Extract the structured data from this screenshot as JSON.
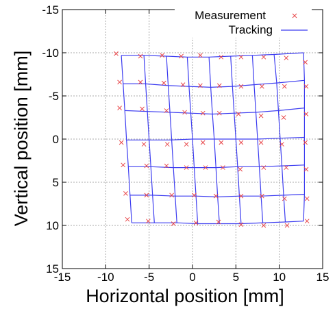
{
  "chart_data": {
    "type": "scatter",
    "xlabel": "Horizontal position [mm]",
    "ylabel": "Vertical position [mm]",
    "xlim": [
      -15,
      15
    ],
    "ylim": [
      -15,
      15
    ],
    "y_inverted": true,
    "grid": true,
    "legend_position": "top-right",
    "x_ticks": [
      "-15",
      "-10",
      "-5",
      "0",
      "5",
      "10",
      "15"
    ],
    "y_ticks": [
      "-15",
      "-10",
      "-5",
      "0",
      "5",
      "10",
      "15"
    ],
    "series": [
      {
        "name": "Measurement",
        "marker": "x",
        "color": "#e8474a",
        "points": [
          [
            -8.8,
            -9.9
          ],
          [
            -6.0,
            -9.6
          ],
          [
            -3.5,
            -9.7
          ],
          [
            -1.3,
            -9.6
          ],
          [
            0.9,
            -9.7
          ],
          [
            3.3,
            -9.5
          ],
          [
            5.6,
            -9.5
          ],
          [
            8.2,
            -9.5
          ],
          [
            10.8,
            -9.4
          ],
          [
            13.0,
            -8.9
          ],
          [
            -8.4,
            -6.6
          ],
          [
            -6.0,
            -6.6
          ],
          [
            -3.3,
            -6.5
          ],
          [
            -1.1,
            -6.3
          ],
          [
            0.9,
            -6.2
          ],
          [
            3.1,
            -6.2
          ],
          [
            5.6,
            -6.1
          ],
          [
            8.0,
            -6.1
          ],
          [
            10.6,
            -6.1
          ],
          [
            13.1,
            -6.1
          ],
          [
            -8.4,
            -3.6
          ],
          [
            -5.8,
            -3.5
          ],
          [
            -3.0,
            -3.3
          ],
          [
            -0.9,
            -3.1
          ],
          [
            1.2,
            -3.0
          ],
          [
            3.1,
            -3.0
          ],
          [
            5.3,
            -2.9
          ],
          [
            7.9,
            -2.7
          ],
          [
            10.5,
            -2.5
          ],
          [
            13.1,
            -2.9
          ],
          [
            -8.2,
            0.4
          ],
          [
            -5.6,
            0.6
          ],
          [
            -2.9,
            0.6
          ],
          [
            -0.7,
            0.6
          ],
          [
            1.2,
            0.4
          ],
          [
            3.3,
            0.4
          ],
          [
            5.6,
            0.4
          ],
          [
            7.9,
            0.4
          ],
          [
            10.3,
            0.6
          ],
          [
            13.0,
            0.4
          ],
          [
            -8.0,
            3.0
          ],
          [
            -5.3,
            3.1
          ],
          [
            -3.0,
            3.1
          ],
          [
            -0.7,
            3.3
          ],
          [
            1.5,
            3.3
          ],
          [
            3.5,
            3.3
          ],
          [
            5.5,
            3.5
          ],
          [
            8.2,
            3.3
          ],
          [
            10.8,
            3.3
          ],
          [
            13.1,
            3.5
          ],
          [
            -7.7,
            6.3
          ],
          [
            -5.3,
            6.5
          ],
          [
            -2.4,
            6.5
          ],
          [
            0.2,
            6.5
          ],
          [
            2.7,
            6.6
          ],
          [
            5.6,
            6.6
          ],
          [
            8.0,
            6.6
          ],
          [
            10.6,
            6.9
          ],
          [
            13.2,
            6.9
          ],
          [
            -7.5,
            9.3
          ],
          [
            -5.1,
            9.5
          ],
          [
            -2.2,
            9.8
          ],
          [
            0.4,
            9.7
          ],
          [
            3.0,
            9.6
          ],
          [
            5.6,
            9.9
          ],
          [
            8.2,
            10.0
          ],
          [
            10.9,
            10.0
          ],
          [
            13.2,
            9.5
          ]
        ]
      },
      {
        "name": "Tracking",
        "marker": "line",
        "color": "#3c3cf0",
        "rows": [
          [
            [
              -8.2,
              -9.7
            ],
            [
              -5.6,
              -9.7
            ],
            [
              -3.0,
              -9.6
            ],
            [
              -0.6,
              -9.5
            ],
            [
              1.9,
              -9.5
            ],
            [
              4.4,
              -9.6
            ],
            [
              6.9,
              -9.7
            ],
            [
              9.4,
              -9.8
            ],
            [
              12.8,
              -10.0
            ]
          ],
          [
            [
              -8.0,
              -6.4
            ],
            [
              -5.4,
              -6.4
            ],
            [
              -2.8,
              -6.2
            ],
            [
              -0.4,
              -6.1
            ],
            [
              2.1,
              -6.0
            ],
            [
              4.6,
              -6.1
            ],
            [
              7.1,
              -6.3
            ],
            [
              9.7,
              -6.5
            ],
            [
              12.9,
              -6.8
            ]
          ],
          [
            [
              -7.8,
              -3.3
            ],
            [
              -5.2,
              -3.2
            ],
            [
              -2.6,
              -3.1
            ],
            [
              -0.2,
              -3.0
            ],
            [
              2.3,
              -2.9
            ],
            [
              4.8,
              -3.0
            ],
            [
              7.3,
              -3.1
            ],
            [
              9.9,
              -3.3
            ],
            [
              12.9,
              -3.6
            ]
          ],
          [
            [
              -7.6,
              0.1
            ],
            [
              -5.0,
              0.1
            ],
            [
              -2.4,
              0.1
            ],
            [
              0.0,
              0.0
            ],
            [
              2.5,
              0.0
            ],
            [
              5.0,
              0.0
            ],
            [
              7.5,
              0.0
            ],
            [
              10.1,
              -0.1
            ],
            [
              12.9,
              -0.2
            ]
          ],
          [
            [
              -7.4,
              3.2
            ],
            [
              -4.8,
              3.2
            ],
            [
              -2.2,
              3.3
            ],
            [
              0.2,
              3.3
            ],
            [
              2.7,
              3.3
            ],
            [
              5.2,
              3.2
            ],
            [
              7.7,
              3.2
            ],
            [
              10.3,
              3.1
            ],
            [
              12.9,
              3.0
            ]
          ],
          [
            [
              -7.2,
              6.5
            ],
            [
              -4.6,
              6.5
            ],
            [
              -2.0,
              6.6
            ],
            [
              0.4,
              6.6
            ],
            [
              2.9,
              6.7
            ],
            [
              5.4,
              6.6
            ],
            [
              7.9,
              6.6
            ],
            [
              10.5,
              6.5
            ],
            [
              12.9,
              6.4
            ]
          ],
          [
            [
              -7.0,
              9.7
            ],
            [
              -4.4,
              9.7
            ],
            [
              -1.8,
              9.7
            ],
            [
              0.6,
              9.8
            ],
            [
              3.1,
              9.8
            ],
            [
              5.6,
              9.8
            ],
            [
              8.1,
              9.7
            ],
            [
              10.7,
              9.6
            ],
            [
              12.8,
              9.5
            ]
          ]
        ]
      }
    ]
  }
}
